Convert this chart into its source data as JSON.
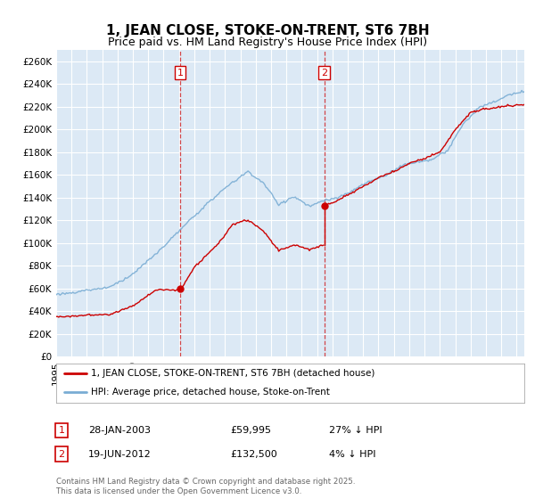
{
  "title": "1, JEAN CLOSE, STOKE-ON-TRENT, ST6 7BH",
  "subtitle": "Price paid vs. HM Land Registry's House Price Index (HPI)",
  "ylim": [
    0,
    270000
  ],
  "yticks": [
    0,
    20000,
    40000,
    60000,
    80000,
    100000,
    120000,
    140000,
    160000,
    180000,
    200000,
    220000,
    240000,
    260000
  ],
  "background_color": "#dce9f5",
  "grid_color": "#ffffff",
  "sale1_date": 2003.08,
  "sale1_price": 59995,
  "sale2_date": 2012.47,
  "sale2_price": 132500,
  "legend_label_red": "1, JEAN CLOSE, STOKE-ON-TRENT, ST6 7BH (detached house)",
  "legend_label_blue": "HPI: Average price, detached house, Stoke-on-Trent",
  "annot1_date": "28-JAN-2003",
  "annot1_price": "£59,995",
  "annot1_hpi": "27% ↓ HPI",
  "annot2_date": "19-JUN-2012",
  "annot2_price": "£132,500",
  "annot2_hpi": "4% ↓ HPI",
  "footer": "Contains HM Land Registry data © Crown copyright and database right 2025.\nThis data is licensed under the Open Government Licence v3.0.",
  "red_color": "#cc0000",
  "blue_color": "#7aadd4",
  "vline_color": "#cc0000",
  "title_fontsize": 11,
  "subtitle_fontsize": 9,
  "tick_fontsize": 7.5,
  "xstart": 1995.0,
  "xend": 2025.5
}
